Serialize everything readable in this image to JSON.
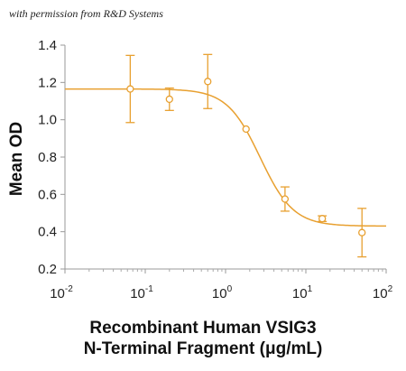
{
  "attribution": "with permission from R&D Systems",
  "chart_data": {
    "type": "scatter",
    "ylabel": "Mean OD",
    "xlabel_line1": "Recombinant Human VSIG3",
    "xlabel_line2": "N-Terminal Fragment (μg/mL)",
    "xscale": "log",
    "xlim": [
      0.01,
      100
    ],
    "ylim": [
      0.2,
      1.4
    ],
    "x_ticks": [
      {
        "base": "10",
        "exp": "-2"
      },
      {
        "base": "10",
        "exp": "-1"
      },
      {
        "base": "10",
        "exp": "0"
      },
      {
        "base": "10",
        "exp": "1"
      },
      {
        "base": "10",
        "exp": "2"
      }
    ],
    "y_ticks": [
      "0.2",
      "0.4",
      "0.6",
      "0.8",
      "1.0",
      "1.2",
      "1.4"
    ],
    "color": "#E8A030",
    "series": [
      {
        "points": [
          {
            "x": 0.065,
            "y": 1.165,
            "err": 0.18
          },
          {
            "x": 0.2,
            "y": 1.11,
            "err": 0.06
          },
          {
            "x": 0.6,
            "y": 1.205,
            "err": 0.145
          },
          {
            "x": 1.8,
            "y": 0.95,
            "err": 0.0
          },
          {
            "x": 5.5,
            "y": 0.575,
            "err": 0.065
          },
          {
            "x": 16,
            "y": 0.47,
            "err": 0.015
          },
          {
            "x": 50,
            "y": 0.395,
            "err": 0.13
          }
        ]
      }
    ],
    "fit": {
      "top": 1.165,
      "bottom": 0.43,
      "ec50": 2.7,
      "hill": 2.1
    }
  }
}
